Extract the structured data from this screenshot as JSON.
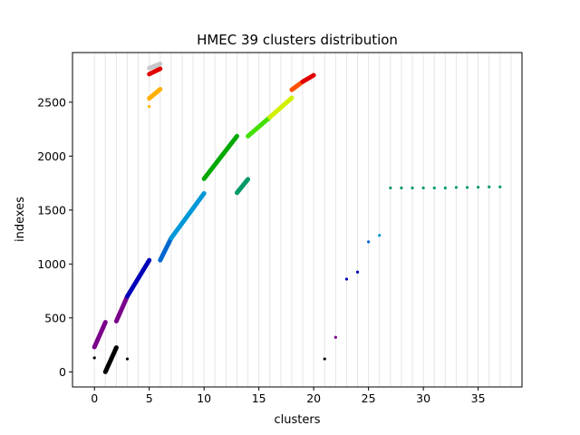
{
  "chart_data": {
    "type": "scatter",
    "title": "HMEC 39 clusters distribution",
    "xlabel": "clusters",
    "ylabel": "indexes",
    "xlim": [
      -2,
      39
    ],
    "ylim": [
      -140,
      2960
    ],
    "x_ticks": [
      0,
      5,
      10,
      15,
      20,
      25,
      30,
      35
    ],
    "y_ticks": [
      0,
      500,
      1000,
      1500,
      2000,
      2500
    ],
    "grid": "vertical lines at each integer cluster 0-38",
    "legend": "none",
    "series": [
      {
        "color": "#000000",
        "segments": [
          [
            1.0,
            0,
            2.0,
            225
          ]
        ],
        "points": [
          [
            0,
            130
          ],
          [
            3,
            120
          ],
          [
            21,
            120
          ]
        ]
      },
      {
        "color": "#7a008a",
        "segments": [
          [
            0.0,
            230,
            1.0,
            460
          ],
          [
            2.0,
            470,
            3.0,
            700
          ]
        ],
        "points": [
          [
            22,
            320
          ]
        ]
      },
      {
        "color": "#0000b8",
        "segments": [
          [
            3.0,
            700,
            5.0,
            1035
          ]
        ],
        "points": [
          [
            23,
            860
          ],
          [
            24,
            925
          ]
        ]
      },
      {
        "color": "#0068d0",
        "segments": [
          [
            6.0,
            1035,
            7.0,
            1240
          ]
        ],
        "points": [
          [
            25,
            1205
          ]
        ]
      },
      {
        "color": "#0098d8",
        "segments": [
          [
            7.0,
            1240,
            10.0,
            1655
          ]
        ],
        "points": [
          [
            26,
            1265
          ]
        ]
      },
      {
        "color": "#009a66",
        "segments": [
          [
            13.0,
            1660,
            14.0,
            1785
          ]
        ],
        "points": [
          [
            27,
            1705
          ],
          [
            28,
            1705
          ],
          [
            29,
            1705
          ],
          [
            30,
            1705
          ],
          [
            31,
            1705
          ],
          [
            32,
            1705
          ],
          [
            33,
            1710
          ],
          [
            34,
            1710
          ],
          [
            35,
            1712
          ],
          [
            36,
            1715
          ],
          [
            37,
            1715
          ]
        ]
      },
      {
        "color": "#00a800",
        "segments": [
          [
            10.0,
            1790,
            13.0,
            2185
          ]
        ],
        "points": []
      },
      {
        "color": "#44e000",
        "segments": [
          [
            14.0,
            2185,
            16.0,
            2360
          ]
        ],
        "points": []
      },
      {
        "color": "#d0f000",
        "segments": [
          [
            16.0,
            2360,
            18.0,
            2540
          ]
        ],
        "points": []
      },
      {
        "color": "#ffb000",
        "segments": [
          [
            5.0,
            2535,
            6.0,
            2620
          ]
        ],
        "points": [
          [
            5,
            2460
          ]
        ]
      },
      {
        "color": "#ff5000",
        "segments": [
          [
            18.0,
            2615,
            19.0,
            2690
          ]
        ],
        "points": []
      },
      {
        "color": "#e00000",
        "segments": [
          [
            19.0,
            2690,
            20.0,
            2750
          ],
          [
            5.0,
            2760,
            6.0,
            2810
          ]
        ],
        "points": []
      },
      {
        "color": "#c8c8c8",
        "segments": [
          [
            5.0,
            2815,
            6.0,
            2855
          ]
        ],
        "points": []
      }
    ]
  }
}
